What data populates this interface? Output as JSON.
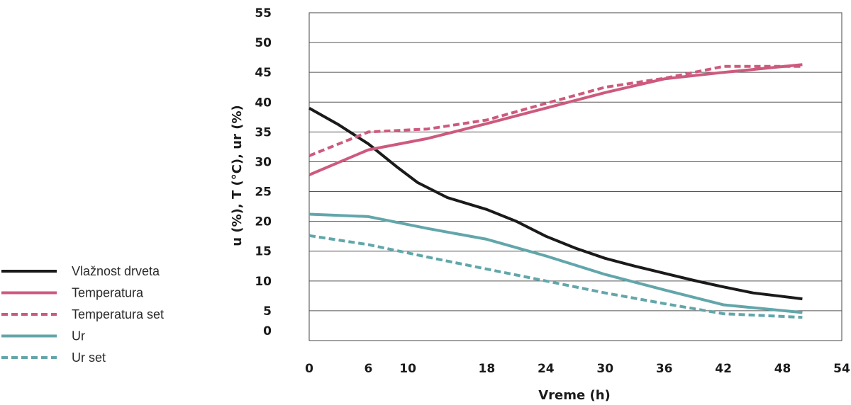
{
  "chart_data": {
    "type": "line",
    "title": "",
    "xlabel": "Vreme (h)",
    "ylabel": "u (%), T (°C), ur (%)",
    "xlim": [
      0,
      54
    ],
    "ylim": [
      0,
      55
    ],
    "x_ticks": [
      0,
      6,
      10,
      18,
      24,
      30,
      36,
      42,
      48,
      54
    ],
    "y_ticks": [
      0,
      5,
      10,
      15,
      20,
      25,
      30,
      35,
      40,
      45,
      50,
      55
    ],
    "grid": "horizontal",
    "legend_position": "left",
    "series": [
      {
        "name": "Vlažnost drveta",
        "color": "#1a1a1a",
        "dash": "solid",
        "points": [
          [
            0,
            39
          ],
          [
            3,
            36.2
          ],
          [
            6,
            33
          ],
          [
            9,
            29
          ],
          [
            11,
            26.5
          ],
          [
            14,
            24
          ],
          [
            18,
            22
          ],
          [
            21,
            20
          ],
          [
            24,
            17.5
          ],
          [
            27,
            15.5
          ],
          [
            30,
            13.8
          ],
          [
            33,
            12.5
          ],
          [
            36,
            11.3
          ],
          [
            39,
            10.1
          ],
          [
            42,
            9
          ],
          [
            45,
            8
          ],
          [
            48,
            7.4
          ],
          [
            50,
            7
          ]
        ]
      },
      {
        "name": "Temperatura",
        "color": "#cd5a7e",
        "dash": "solid",
        "points": [
          [
            0,
            27.8
          ],
          [
            6,
            32
          ],
          [
            12,
            33.9
          ],
          [
            18,
            36.4
          ],
          [
            24,
            39
          ],
          [
            30,
            41.6
          ],
          [
            36,
            43.9
          ],
          [
            42,
            45
          ],
          [
            50,
            46.3
          ]
        ]
      },
      {
        "name": "Temperatura set",
        "color": "#cd5a7e",
        "dash": "dashed",
        "points": [
          [
            0,
            31
          ],
          [
            6,
            35
          ],
          [
            12,
            35.5
          ],
          [
            18,
            37
          ],
          [
            24,
            39.8
          ],
          [
            30,
            42.5
          ],
          [
            36,
            44
          ],
          [
            42,
            46
          ],
          [
            50,
            46
          ]
        ]
      },
      {
        "name": "Ur",
        "color": "#62a6aa",
        "dash": "solid",
        "points": [
          [
            0,
            21.2
          ],
          [
            6,
            20.8
          ],
          [
            12,
            18.8
          ],
          [
            18,
            17
          ],
          [
            24,
            14.2
          ],
          [
            30,
            11.1
          ],
          [
            36,
            8.5
          ],
          [
            42,
            6
          ],
          [
            50,
            4.7
          ]
        ]
      },
      {
        "name": "Ur set",
        "color": "#62a6aa",
        "dash": "dashed",
        "points": [
          [
            0,
            17.6
          ],
          [
            6,
            16.1
          ],
          [
            12,
            14
          ],
          [
            18,
            12
          ],
          [
            24,
            10
          ],
          [
            30,
            8
          ],
          [
            36,
            6.2
          ],
          [
            42,
            4.5
          ],
          [
            50,
            3.9
          ]
        ]
      }
    ]
  }
}
